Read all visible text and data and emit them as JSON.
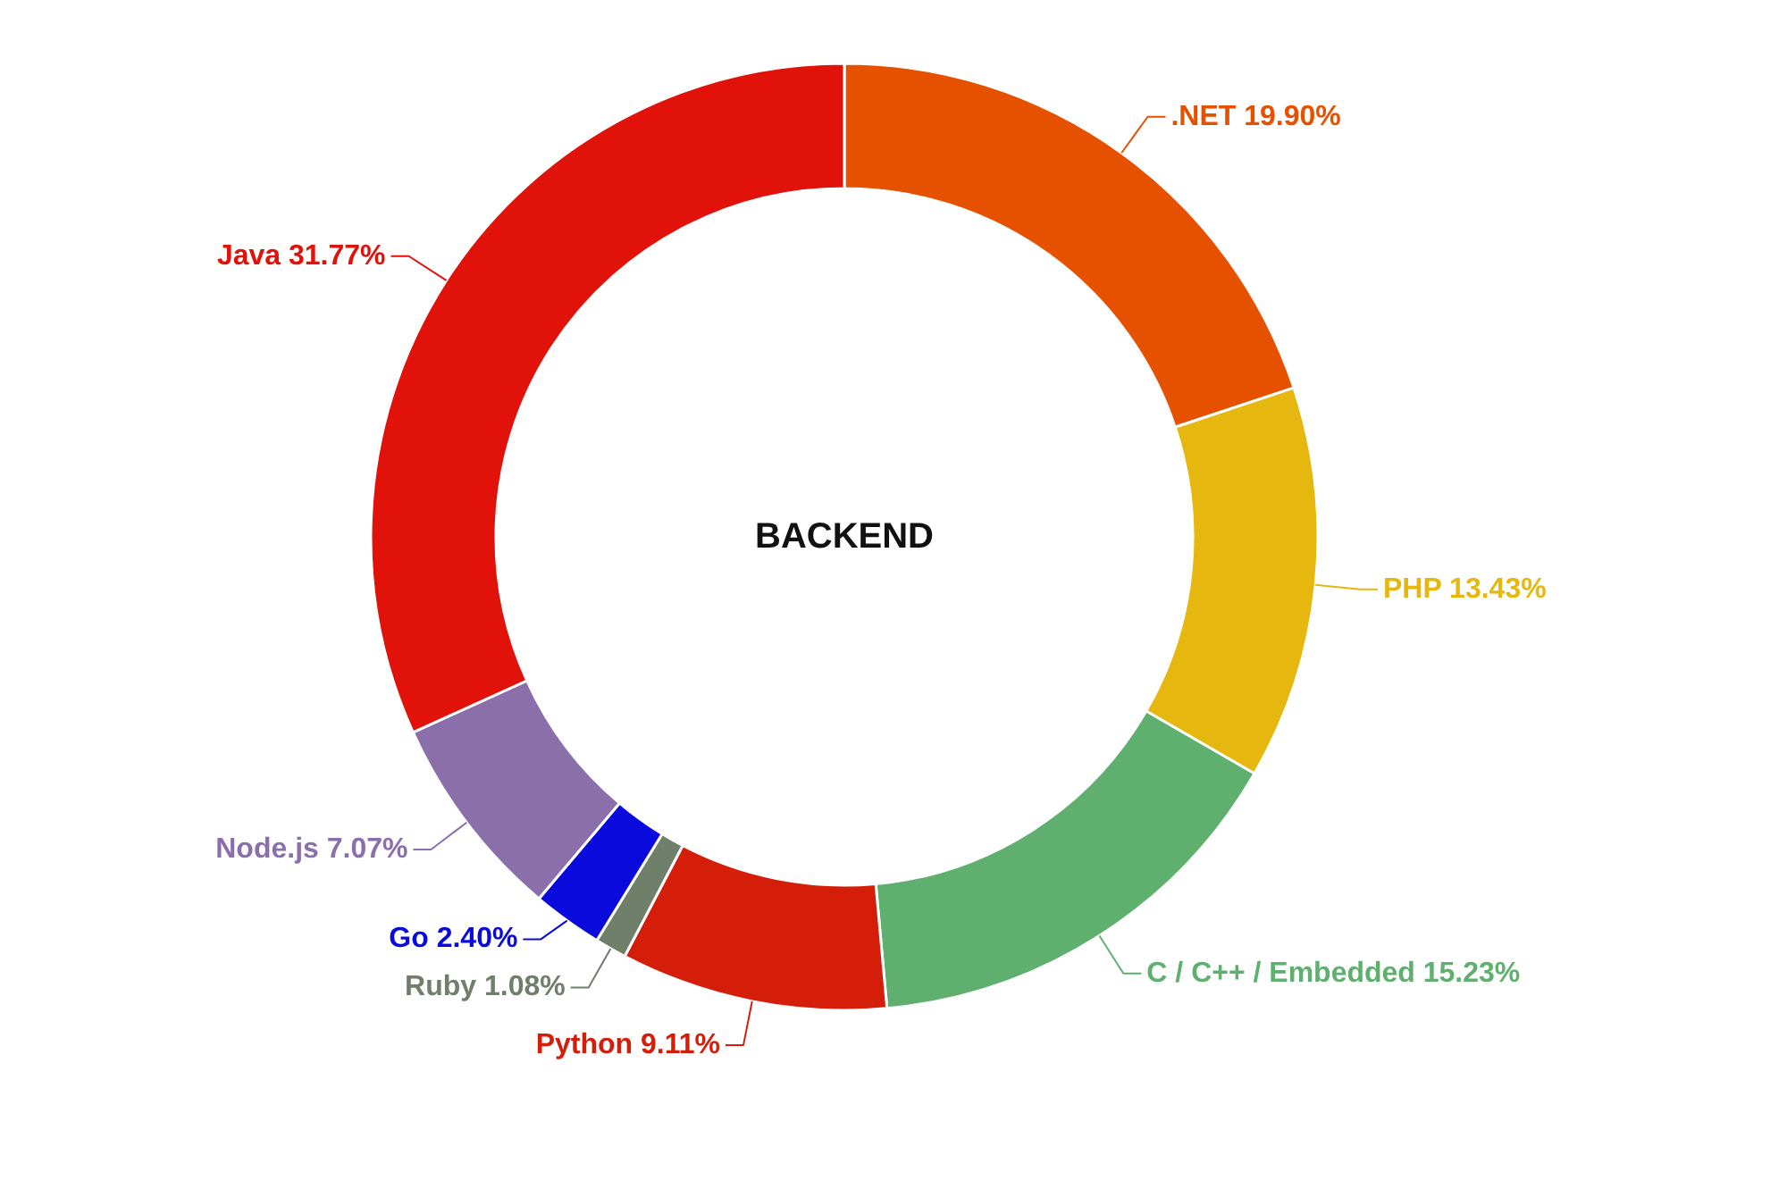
{
  "chart_data": {
    "type": "donut",
    "title": "BACKEND",
    "categories": [
      ".NET",
      "PHP",
      "C / C++ / Embedded",
      "Python",
      "Ruby",
      "Go",
      "Node.js",
      "Java"
    ],
    "values": [
      19.9,
      13.43,
      15.23,
      9.11,
      1.08,
      2.4,
      7.07,
      31.77
    ],
    "value_labels": [
      "19.90%",
      "13.43%",
      "15.23%",
      "9.11%",
      "1.08%",
      "2.40%",
      "7.07%",
      "31.77%"
    ],
    "colors": [
      "#e65100",
      "#e6b80f",
      "#5fb06e",
      "#d41e0a",
      "#6f7f6a",
      "#0a0adc",
      "#8a6fab",
      "#e0120a"
    ]
  }
}
